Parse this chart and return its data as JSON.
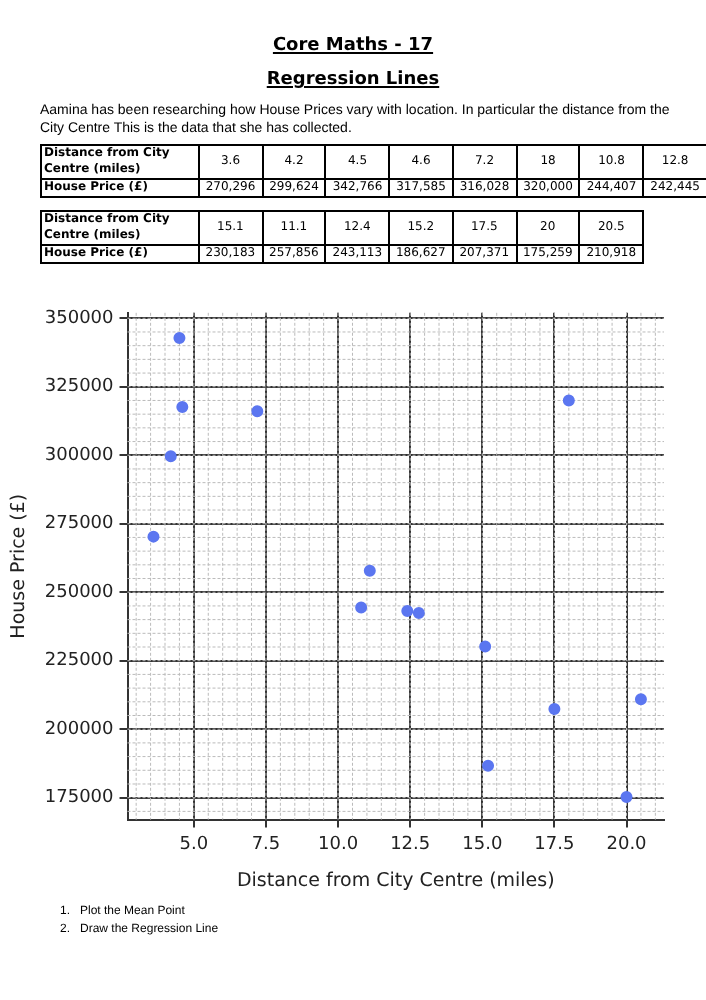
{
  "chart_data": [
    {
      "type": "other",
      "title": "Core Maths - 17",
      "subtitle": "Regression Lines",
      "annotations": [
        "Aamina has been researching how House Prices vary with location. In particular the distance from the City Centre This is the data that she has collected.",
        "Distance from City Centre (miles)",
        "3.6",
        "4.2",
        "4.5",
        "4.6",
        "7.2",
        "18",
        "10.8",
        "12.8",
        "House Price (£)",
        "270,296",
        "299,624",
        "342,766",
        "317,585",
        "316,028",
        "320,000",
        "244,407",
        "242,445",
        "Distance from City Centre (miles)",
        "15.1",
        "11.1",
        "12.4",
        "15.2",
        "17.5",
        "20",
        "20.5",
        "House Price (£)",
        "230,183",
        "257,856",
        "243,113",
        "186,627",
        "207,371",
        "175,259",
        "210,918"
      ]
    },
    {
      "type": "scatter",
      "xlabel": "Distance from City Centre (miles)",
      "ylabel": "House Price (£)",
      "annotations": [
        "1.   Plot the Mean Point",
        "2.   Draw the Regression Line"
      ],
      "x": [
        3.6,
        4.2,
        4.5,
        4.6,
        7.2,
        18,
        10.8,
        12.8,
        15.1,
        11.1,
        12.4,
        15.2,
        17.5,
        20,
        20.5
      ],
      "values": [
        270296,
        299624,
        342766,
        317585,
        316028,
        320000,
        244407,
        242445,
        230183,
        257856,
        243113,
        186627,
        207371,
        175259,
        210918
      ],
      "color": "#5b76f0",
      "marker": "circle",
      "grid": true,
      "xlim": [
        2.7,
        21.3
      ],
      "xticks": [
        {
          "value": 5,
          "label": "5.0"
        },
        {
          "value": 7.5,
          "label": "7.5"
        },
        {
          "value": 10,
          "label": "10.0"
        },
        {
          "value": 12.5,
          "label": "12.5"
        },
        {
          "value": 15,
          "label": "15.0"
        },
        {
          "value": 17.5,
          "label": "17.5"
        },
        {
          "value": 20,
          "label": "20.0"
        }
      ],
      "ylim": [
        167000,
        352000
      ],
      "yticks": [
        175000,
        200000,
        225000,
        250000,
        275000,
        300000,
        325000,
        350000
      ]
    }
  ]
}
